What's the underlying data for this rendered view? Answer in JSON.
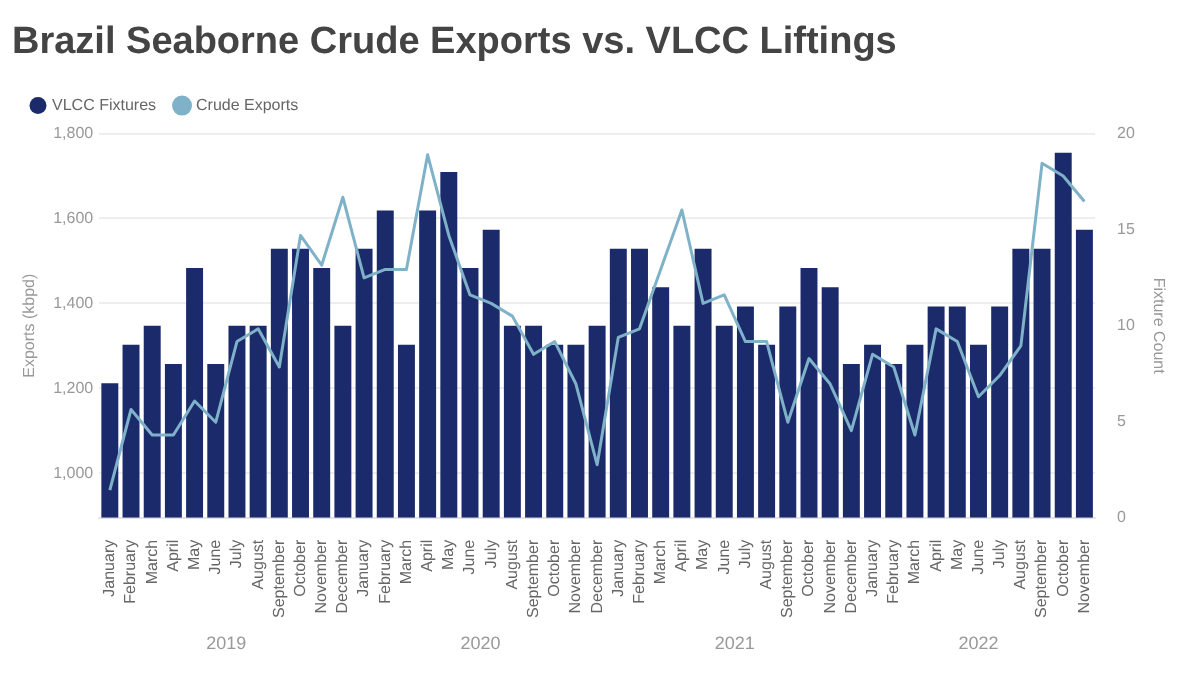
{
  "chart_data": {
    "type": "bar",
    "title": "Brazil Seaborne Crude Exports vs. VLCC Liftings",
    "ylabel": "Exports (kbpd)",
    "y2label": "Fixture Count",
    "categories": [
      "January",
      "February",
      "March",
      "April",
      "May",
      "June",
      "July",
      "August",
      "September",
      "October",
      "November",
      "December",
      "January",
      "February",
      "March",
      "April",
      "May",
      "June",
      "July",
      "August",
      "September",
      "October",
      "November",
      "December",
      "January",
      "February",
      "March",
      "April",
      "May",
      "June",
      "July",
      "August",
      "September",
      "October",
      "November",
      "December",
      "January",
      "February",
      "March",
      "April",
      "May",
      "June",
      "July",
      "August",
      "September",
      "October",
      "November"
    ],
    "annotations": [
      "2019",
      "2020",
      "2021",
      "2022"
    ],
    "series": [
      {
        "name": "VLCC Fixtures",
        "axis": "y2",
        "color": "#1b2a6b",
        "values": [
          7,
          9,
          10,
          8,
          13,
          8,
          10,
          10,
          14,
          14,
          13,
          10,
          14,
          16,
          9,
          16,
          18,
          13,
          15,
          10,
          10,
          9,
          9,
          10,
          14,
          14,
          12,
          10,
          14,
          10,
          11,
          9,
          11,
          13,
          12,
          8,
          9,
          8,
          9,
          11,
          11,
          9,
          11,
          14,
          14,
          19,
          15
        ]
      },
      {
        "name": "Crude Exports",
        "type": "line",
        "color": "#7fb2c8",
        "values": [
          960,
          1150,
          1090,
          1090,
          1170,
          1120,
          1310,
          1340,
          1250,
          1560,
          1490,
          1650,
          1460,
          1480,
          1480,
          1750,
          1560,
          1420,
          1400,
          1370,
          1280,
          1310,
          1210,
          1020,
          1320,
          1340,
          1480,
          1620,
          1400,
          1420,
          1310,
          1310,
          1120,
          1270,
          1210,
          1100,
          1280,
          1250,
          1090,
          1340,
          1310,
          1180,
          1230,
          1300,
          1730,
          1700,
          1640
        ]
      }
    ],
    "ylim": [
      895,
      1800
    ],
    "yticks": [
      {
        "value": 1000,
        "label": "1,000"
      },
      {
        "value": 1200,
        "label": "1,200"
      },
      {
        "value": 1400,
        "label": "1,400"
      },
      {
        "value": 1600,
        "label": "1,600"
      },
      {
        "value": 1800,
        "label": "1,800"
      }
    ],
    "y2lim": [
      0,
      20
    ],
    "y2ticks": [
      0,
      5,
      10,
      15,
      20
    ],
    "grid": "y",
    "legend": "top left",
    "marker": "none",
    "line_style": "solid"
  }
}
